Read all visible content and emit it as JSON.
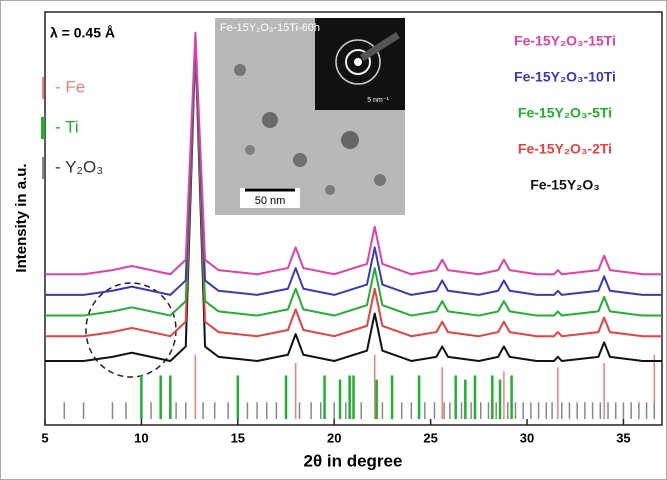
{
  "chart_data": {
    "type": "line",
    "wavelength_label": "λ = 0.45 Å",
    "xlabel": "2θ in degree",
    "ylabel": "Intensity in a.u.",
    "inset": {
      "title": "Fe-15Y₂O₃-15Ti-60h",
      "scale_bar": "50 nm",
      "diffraction_scale": "5 nm⁻¹"
    },
    "xlim": [
      5,
      37
    ],
    "xticks": [
      5,
      10,
      15,
      20,
      25,
      30,
      35
    ],
    "ylim": [
      0,
      100
    ],
    "x": [
      5,
      7,
      8.5,
      9.5,
      10.5,
      11.5,
      12.3,
      12.8,
      13.3,
      14,
      16,
      17.6,
      18,
      18.4,
      20,
      21.7,
      22.1,
      22.5,
      24,
      25.3,
      25.6,
      25.9,
      27.5,
      28.5,
      28.8,
      29.1,
      30.5,
      31.4,
      31.6,
      31.8,
      33.7,
      34,
      34.3,
      36,
      37
    ],
    "series": [
      {
        "name": "Fe-15Y₂O₃-15Ti",
        "color": "#e040a8",
        "values": [
          36.5,
          36.5,
          37.5,
          38.5,
          37.5,
          36.5,
          40,
          95,
          40,
          37.5,
          36.5,
          38,
          43,
          38,
          36.5,
          39,
          48,
          39,
          36.5,
          37.5,
          40,
          37.5,
          36.5,
          37.5,
          40,
          37.5,
          36.5,
          36.5,
          37.5,
          36.5,
          37.5,
          41,
          37.5,
          36.5,
          36.5
        ]
      },
      {
        "name": "Fe-15Y₂O₃-10Ti",
        "color": "#3a3ab8",
        "values": [
          31.5,
          31.5,
          32.5,
          33.5,
          32.5,
          31.5,
          35,
          94,
          35,
          32.5,
          31.5,
          33,
          38,
          33,
          31.5,
          34,
          43,
          34,
          31.5,
          32.5,
          35,
          32.5,
          31.5,
          32.5,
          35,
          32.5,
          31.5,
          31.5,
          32.5,
          31.5,
          32.5,
          36,
          32.5,
          31.5,
          31.5
        ]
      },
      {
        "name": "Fe-15Y₂O₃-5Ti",
        "color": "#1fb030",
        "values": [
          26.5,
          26.5,
          27.5,
          28.5,
          27.5,
          26.5,
          30,
          93,
          30,
          27.5,
          26.5,
          28,
          33,
          28,
          26.5,
          29,
          38,
          29,
          26.5,
          27.5,
          30,
          27.5,
          26.5,
          27.5,
          30,
          27.5,
          26.5,
          26.5,
          27.5,
          26.5,
          27.5,
          31,
          27.5,
          26.5,
          26.5
        ]
      },
      {
        "name": "Fe-15Y₂O₃-2Ti",
        "color": "#e84040",
        "values": [
          21.5,
          21.5,
          22.5,
          23.5,
          22.5,
          21.5,
          25,
          93,
          25,
          22.5,
          21.5,
          23,
          28,
          23,
          21.5,
          24,
          33,
          24,
          21.5,
          22.5,
          25,
          22.5,
          21.5,
          22.5,
          25,
          22.5,
          21.5,
          21.5,
          22.5,
          21.5,
          22.5,
          26,
          22.5,
          21.5,
          21.5
        ]
      },
      {
        "name": "Fe-15Y₂O₃",
        "color": "#111111",
        "values": [
          15.5,
          15.5,
          16.5,
          17.5,
          16.5,
          15.5,
          19,
          92,
          19,
          16.5,
          15.5,
          17,
          22,
          17,
          15.5,
          18,
          27,
          18,
          15.5,
          16.5,
          19,
          16.5,
          15.5,
          16.5,
          19,
          16.5,
          15.5,
          15.5,
          16.5,
          15.5,
          16.5,
          20,
          16.5,
          15.5,
          15.5
        ]
      }
    ],
    "reference_patterns": [
      {
        "name": "- Fe",
        "color": "#f08080",
        "x": [
          12.8,
          18,
          22.1,
          25.6,
          28.8,
          31.6,
          34,
          36.6
        ],
        "values": [
          17,
          15,
          17,
          14,
          13,
          14,
          15,
          17
        ]
      },
      {
        "name": "- Ti",
        "color": "#1fb030",
        "x": [
          10,
          11,
          11.5,
          15,
          17.5,
          19.5,
          20.3,
          20.8,
          21,
          22.2,
          23,
          24.4,
          26.3,
          26.8,
          27.3,
          28.2,
          28.6,
          29.2
        ],
        "values": [
          12,
          12,
          12,
          12,
          12,
          12,
          11,
          12,
          12,
          11,
          12,
          12,
          12,
          11,
          12,
          12,
          11,
          12
        ]
      },
      {
        "name": "- Y₂O₃",
        "color": "#888888",
        "x": [
          6,
          7,
          8.5,
          9.2,
          10.5,
          11.8,
          12.3,
          13.2,
          13.8,
          14.5,
          15.5,
          16,
          16.5,
          17,
          18.2,
          18.8,
          19.3,
          20,
          20.6,
          21.4,
          22.5,
          23.5,
          24,
          24.7,
          25.2,
          25.7,
          26,
          26.6,
          27.1,
          27.6,
          28,
          28.4,
          29,
          29.4,
          29.8,
          30.2,
          30.6,
          31,
          31.3,
          31.8,
          32.2,
          32.6,
          33,
          33.4,
          33.8,
          34.2,
          34.6,
          35,
          35.4,
          35.8,
          36.2,
          36.6
        ],
        "values": [
          5.5,
          5.5,
          5.5,
          5.5,
          5.5,
          5.5,
          5.5,
          5.5,
          5.5,
          5.5,
          5.5,
          5.5,
          5.5,
          5.5,
          5.5,
          5.5,
          5.5,
          5.5,
          5.5,
          5.5,
          5.5,
          5.5,
          5.5,
          5.5,
          5.5,
          5.5,
          5.5,
          5.5,
          5.5,
          5.5,
          5.5,
          5.5,
          5.5,
          5.5,
          5.5,
          5.5,
          5.5,
          5.5,
          5.5,
          5.5,
          5.5,
          5.5,
          5.5,
          5.5,
          5.5,
          5.5,
          5.5,
          5.5,
          5.5,
          5.5,
          5.5,
          5.5
        ]
      }
    ]
  }
}
